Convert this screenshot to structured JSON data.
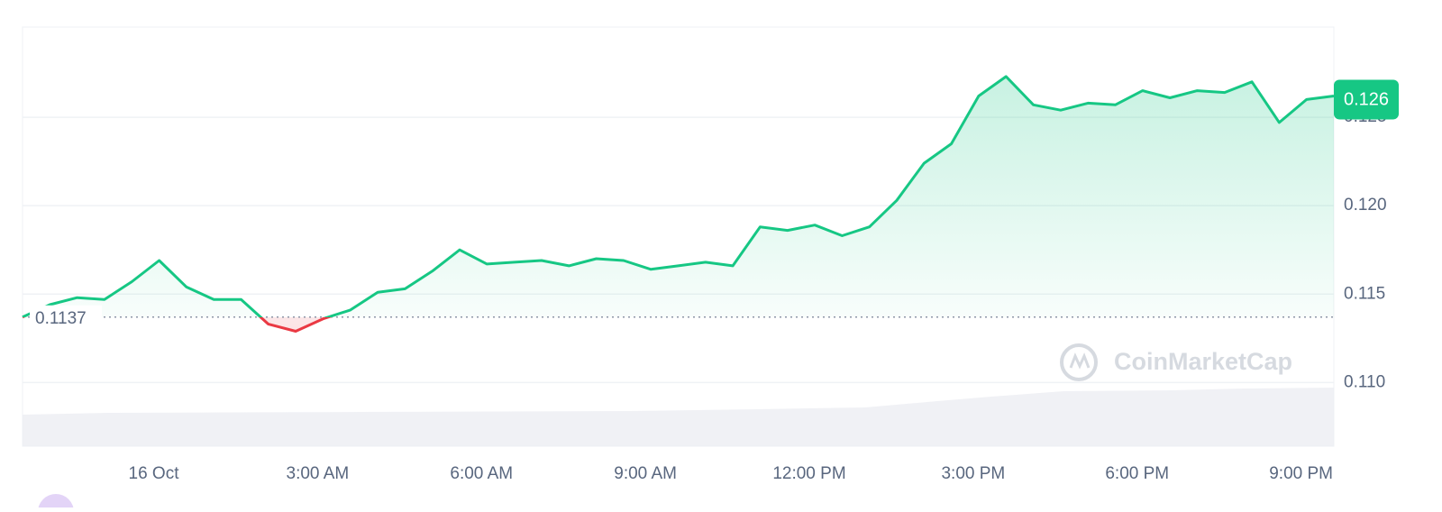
{
  "chart_data": {
    "type": "baseline-line",
    "x": [
      -2.4,
      -1.9,
      -1.4,
      -0.9,
      -0.4,
      0.1,
      0.6,
      1.1,
      1.6,
      2.1,
      2.6,
      3.1,
      3.6,
      4.1,
      4.6,
      5.1,
      5.6,
      6.1,
      6.6,
      7.1,
      7.6,
      8.1,
      8.6,
      9.1,
      9.6,
      10.1,
      10.6,
      11.1,
      11.6,
      12.1,
      12.6,
      13.1,
      13.6,
      14.1,
      14.6,
      15.1,
      15.6,
      16.1,
      16.6,
      17.1,
      17.6,
      18.1,
      18.6,
      19.1,
      19.6,
      20.1,
      20.6,
      21.1,
      21.6
    ],
    "values": [
      0.1137,
      0.1144,
      0.1148,
      0.1147,
      0.1157,
      0.1169,
      0.1154,
      0.1147,
      0.1147,
      0.1133,
      0.1129,
      0.1136,
      0.1141,
      0.1151,
      0.1153,
      0.1163,
      0.1175,
      0.1167,
      0.1168,
      0.1169,
      0.1166,
      0.117,
      0.1169,
      0.1164,
      0.1166,
      0.1168,
      0.1166,
      0.1188,
      0.1186,
      0.1189,
      0.1183,
      0.1188,
      0.1203,
      0.1224,
      0.1235,
      0.1262,
      0.1273,
      0.1257,
      0.1254,
      0.1258,
      0.1257,
      0.1265,
      0.1261,
      0.1265,
      0.1264,
      0.127,
      0.1247,
      0.126,
      0.1262
    ],
    "baseline": 0.1137,
    "current_price": 0.126,
    "up_color": "#16c784",
    "down_color": "#ea3943",
    "xlim": [
      -2.4,
      21.6
    ],
    "xticks": [
      {
        "value": 0,
        "label": "16 Oct"
      },
      {
        "value": 3,
        "label": "3:00 AM"
      },
      {
        "value": 6,
        "label": "6:00 AM"
      },
      {
        "value": 9,
        "label": "9:00 AM"
      },
      {
        "value": 12,
        "label": "12:00 PM"
      },
      {
        "value": 15,
        "label": "3:00 PM"
      },
      {
        "value": 18,
        "label": "6:00 PM"
      },
      {
        "value": 21,
        "label": "9:00 PM"
      }
    ],
    "ylim": [
      0.1064,
      0.1301
    ],
    "yticks": [
      {
        "value": 0.11,
        "label": "0.110"
      },
      0.115,
      {
        "value": 0.12,
        "label": "0.120"
      },
      0.125
    ],
    "grid": true,
    "watermark": "CoinMarketCap"
  }
}
